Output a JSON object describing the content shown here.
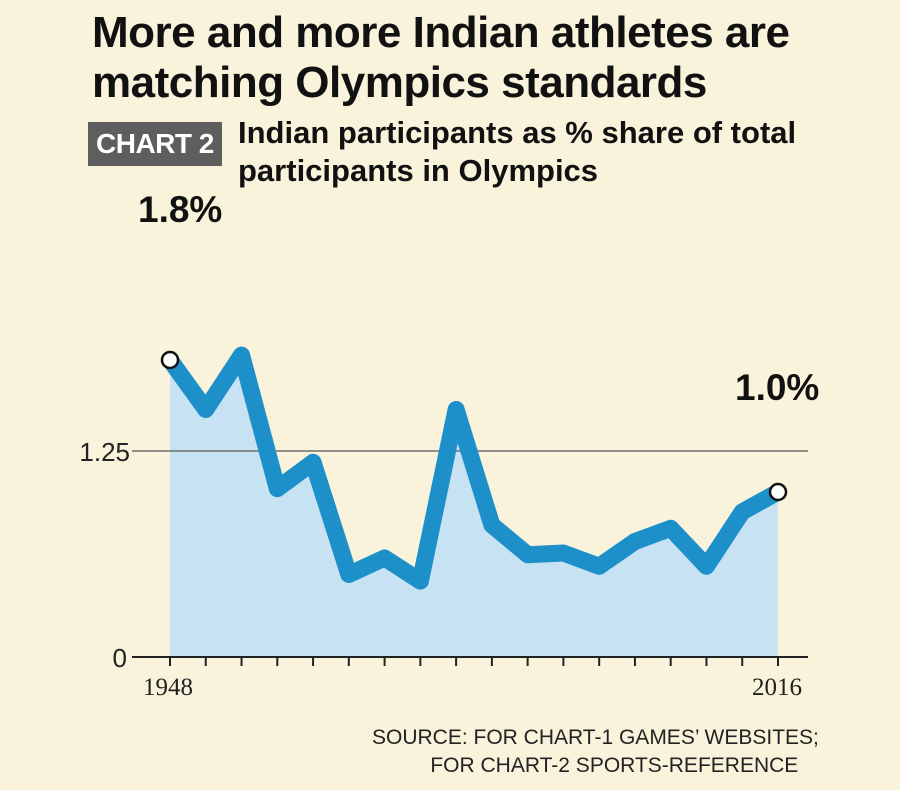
{
  "headline": "More and more Indian athletes are matching Olympics standards",
  "badge": "CHART 2",
  "chart_data": {
    "type": "area",
    "title": "Indian participants as % share of total participants in Olympics",
    "x": [
      1948,
      1952,
      1956,
      1960,
      1964,
      1968,
      1972,
      1976,
      1980,
      1984,
      1988,
      1992,
      1996,
      2000,
      2004,
      2008,
      2012,
      2016
    ],
    "y": [
      1.8,
      1.5,
      1.83,
      1.02,
      1.18,
      0.5,
      0.6,
      0.46,
      1.5,
      0.8,
      0.62,
      0.63,
      0.55,
      0.7,
      0.78,
      0.55,
      0.88,
      1.0
    ],
    "ylim": [
      0,
      2
    ],
    "ytick_labels": [
      "0",
      "1.25"
    ],
    "xtick_labels": [
      "1948",
      "2016"
    ],
    "annotations": [
      {
        "x": 1948,
        "label": "1.8%"
      },
      {
        "x": 2016,
        "label": "1.0%"
      }
    ],
    "line_color": "#1d8fc9",
    "fill_color": "#c6e2f3",
    "grid": true
  },
  "source_lines": [
    "SOURCE: FOR CHART-1 GAMES’ WEBSITES;",
    "          FOR CHART-2 SPORTS-REFERENCE"
  ]
}
